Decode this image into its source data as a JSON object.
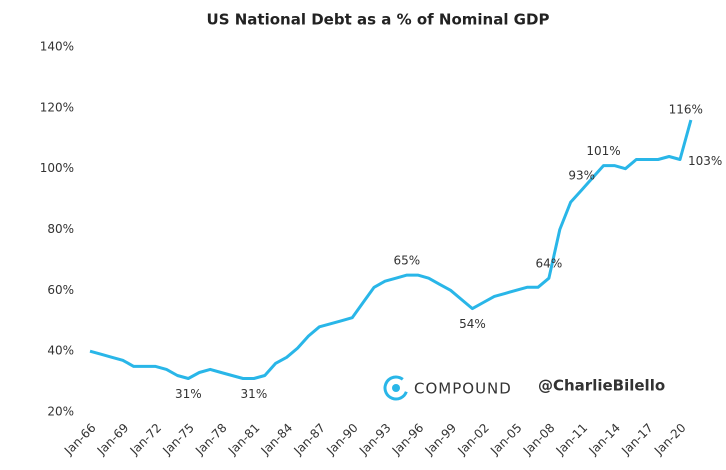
{
  "chart_data": {
    "type": "line",
    "title": "US National Debt as a % of Nominal GDP",
    "categories": [
      "Jan-66",
      null,
      null,
      "Jan-69",
      null,
      null,
      "Jan-72",
      null,
      null,
      "Jan-75",
      null,
      null,
      "Jan-78",
      null,
      null,
      "Jan-81",
      null,
      null,
      "Jan-84",
      null,
      null,
      "Jan-87",
      null,
      null,
      "Jan-90",
      null,
      null,
      "Jan-93",
      null,
      null,
      "Jan-96",
      null,
      null,
      "Jan-99",
      null,
      null,
      "Jan-02",
      null,
      null,
      "Jan-05",
      null,
      null,
      "Jan-08",
      null,
      null,
      "Jan-11",
      null,
      null,
      "Jan-14",
      null,
      null,
      "Jan-17",
      null,
      null,
      "Jan-20",
      null
    ],
    "series": [
      {
        "name": "US National Debt as a % of Nominal GDP",
        "color": "#29b6e8",
        "values": [
          40,
          39,
          38,
          37,
          35,
          35,
          35,
          34,
          32,
          31,
          33,
          34,
          33,
          32,
          31,
          31,
          32,
          36,
          38,
          41,
          45,
          48,
          49,
          50,
          51,
          56,
          61,
          63,
          64,
          65,
          65,
          64,
          62,
          60,
          57,
          54,
          56,
          58,
          59,
          60,
          61,
          61,
          64,
          80,
          89,
          93,
          97,
          101,
          101,
          100,
          103,
          103,
          103,
          104,
          103,
          116
        ],
        "value_labels": [
          null,
          null,
          null,
          null,
          null,
          null,
          null,
          null,
          null,
          "31%",
          null,
          null,
          null,
          null,
          null,
          "31%",
          null,
          null,
          null,
          null,
          null,
          null,
          null,
          null,
          null,
          null,
          null,
          null,
          null,
          "65%",
          null,
          null,
          null,
          null,
          null,
          "54%",
          null,
          null,
          null,
          null,
          null,
          null,
          "64%",
          null,
          null,
          "93%",
          null,
          "101%",
          null,
          null,
          null,
          null,
          null,
          null,
          "103%",
          "116%"
        ]
      }
    ],
    "ylim": [
      20,
      140
    ],
    "yticks": [
      {
        "value": 20,
        "label": "20%"
      },
      {
        "value": 40,
        "label": "40%"
      },
      {
        "value": 60,
        "label": "60%"
      },
      {
        "value": 80,
        "label": "80%"
      },
      {
        "value": 100,
        "label": "100%"
      },
      {
        "value": 120,
        "label": "120%"
      },
      {
        "value": 140,
        "label": "140%"
      }
    ],
    "grid": false,
    "watermark": [
      "COMPOUND",
      "@CharlieBilello"
    ]
  }
}
